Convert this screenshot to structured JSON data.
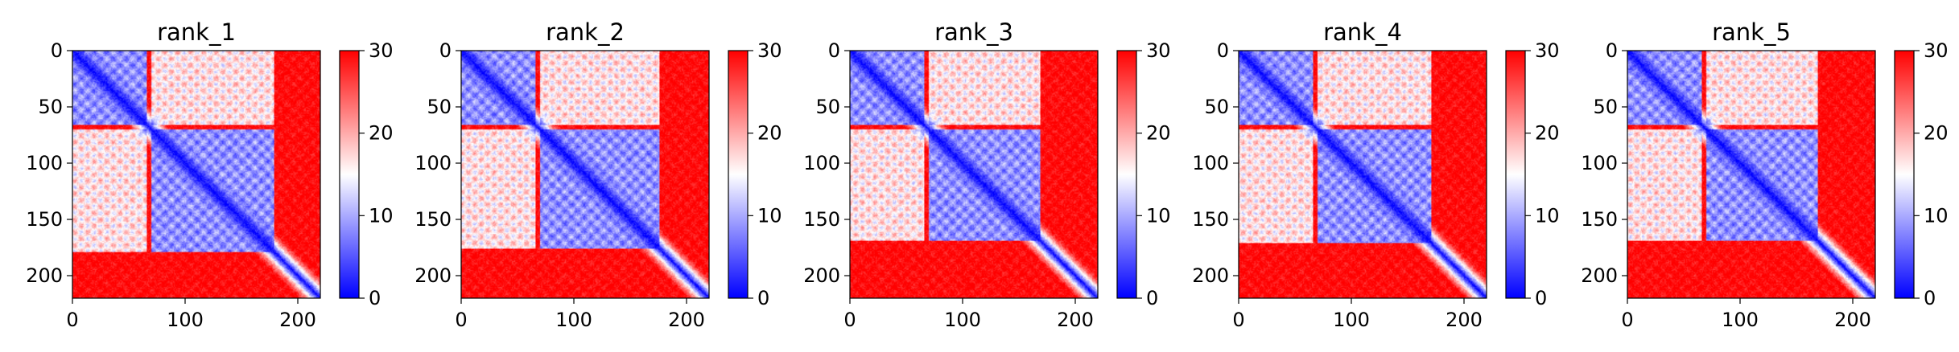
{
  "chart_data": [
    {
      "type": "heatmap",
      "title": "rank_1",
      "matrix_size": 220,
      "xlim": [
        0,
        220
      ],
      "ylim": [
        220,
        0
      ],
      "x_ticks": [
        0,
        100,
        200
      ],
      "y_ticks": [
        0,
        50,
        100,
        150,
        200
      ],
      "colorbar": {
        "min": 0,
        "max": 30,
        "ticks": [
          0,
          10,
          20,
          30
        ],
        "colormap": "bwr",
        "colors": [
          "#0000ff",
          "#ffffff",
          "#ff0000"
        ]
      },
      "domains": [
        [
          0,
          65
        ],
        [
          70,
          178
        ]
      ],
      "diagonal_value": 0,
      "far_value": 30
    },
    {
      "type": "heatmap",
      "title": "rank_2",
      "matrix_size": 220,
      "xlim": [
        0,
        220
      ],
      "ylim": [
        220,
        0
      ],
      "x_ticks": [
        0,
        100,
        200
      ],
      "y_ticks": [
        0,
        50,
        100,
        150,
        200
      ],
      "colorbar": {
        "min": 0,
        "max": 30,
        "ticks": [
          0,
          10,
          20,
          30
        ],
        "colormap": "bwr",
        "colors": [
          "#0000ff",
          "#ffffff",
          "#ff0000"
        ]
      },
      "domains": [
        [
          0,
          65
        ],
        [
          70,
          175
        ]
      ],
      "diagonal_value": 0,
      "far_value": 30
    },
    {
      "type": "heatmap",
      "title": "rank_3",
      "matrix_size": 220,
      "xlim": [
        0,
        220
      ],
      "ylim": [
        220,
        0
      ],
      "x_ticks": [
        0,
        100,
        200
      ],
      "y_ticks": [
        0,
        50,
        100,
        150,
        200
      ],
      "colorbar": {
        "min": 0,
        "max": 30,
        "ticks": [
          0,
          10,
          20,
          30
        ],
        "colormap": "bwr",
        "colors": [
          "#0000ff",
          "#ffffff",
          "#ff0000"
        ]
      },
      "domains": [
        [
          0,
          65
        ],
        [
          70,
          168
        ]
      ],
      "diagonal_value": 0,
      "far_value": 30
    },
    {
      "type": "heatmap",
      "title": "rank_4",
      "matrix_size": 220,
      "xlim": [
        0,
        220
      ],
      "ylim": [
        220,
        0
      ],
      "x_ticks": [
        0,
        100,
        200
      ],
      "y_ticks": [
        0,
        50,
        100,
        150,
        200
      ],
      "colorbar": {
        "min": 0,
        "max": 30,
        "ticks": [
          0,
          10,
          20,
          30
        ],
        "colormap": "bwr",
        "colors": [
          "#0000ff",
          "#ffffff",
          "#ff0000"
        ]
      },
      "domains": [
        [
          0,
          65
        ],
        [
          70,
          170
        ]
      ],
      "diagonal_value": 0,
      "far_value": 30
    },
    {
      "type": "heatmap",
      "title": "rank_5",
      "matrix_size": 220,
      "xlim": [
        0,
        220
      ],
      "ylim": [
        220,
        0
      ],
      "x_ticks": [
        0,
        100,
        200
      ],
      "y_ticks": [
        0,
        50,
        100,
        150,
        200
      ],
      "colorbar": {
        "min": 0,
        "max": 30,
        "ticks": [
          0,
          10,
          20,
          30
        ],
        "colormap": "bwr",
        "colors": [
          "#0000ff",
          "#ffffff",
          "#ff0000"
        ]
      },
      "domains": [
        [
          0,
          65
        ],
        [
          70,
          168
        ]
      ],
      "diagonal_value": 0,
      "far_value": 30
    }
  ]
}
